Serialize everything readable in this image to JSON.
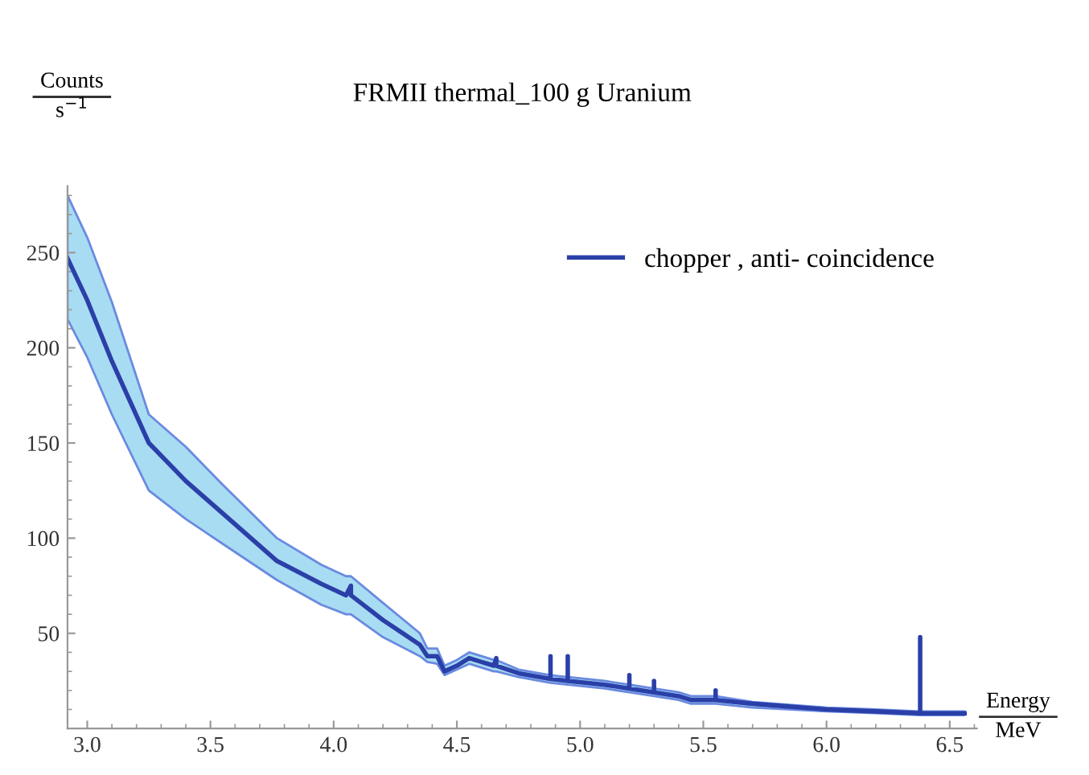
{
  "chart_data": {
    "type": "line",
    "title": "FRMII thermal_100 g Uranium",
    "xlabel": "Energy\nMeV",
    "ylabel": "Counts\ns$^{−1}$",
    "xlim": [
      2.92,
      6.61
    ],
    "ylim": [
      0,
      285
    ],
    "xticks": [
      {
        "value": 3,
        "label": "3.0"
      },
      3.5,
      {
        "value": 4,
        "label": "4.0"
      },
      4.5,
      {
        "value": 5,
        "label": "5.0"
      },
      5.5,
      {
        "value": 6,
        "label": "6.0"
      },
      6.5
    ],
    "yticks": [
      50,
      100,
      150,
      200,
      250
    ],
    "legend": "top right",
    "grid": false,
    "series": [
      {
        "name": "chopper , anti- coincidence",
        "color": "#2b3fa8",
        "x": [
          2.92,
          3.0,
          3.1,
          3.25,
          3.4,
          3.55,
          3.77,
          3.95,
          4.05,
          4.07,
          4.07,
          4.07,
          4.2,
          4.35,
          4.38,
          4.42,
          4.45,
          4.5,
          4.55,
          4.6,
          4.65,
          4.66,
          4.66,
          4.66,
          4.75,
          4.88,
          4.88,
          4.88,
          4.95,
          4.95,
          4.95,
          5.1,
          5.2,
          5.2,
          5.2,
          5.3,
          5.3,
          5.3,
          5.4,
          5.45,
          5.55,
          5.55,
          5.55,
          5.7,
          6.0,
          6.2,
          6.38,
          6.38,
          6.38,
          6.56
        ],
        "values": [
          247,
          225,
          193,
          150,
          130,
          113,
          88,
          76,
          70,
          75,
          70,
          70,
          57,
          44,
          38,
          38,
          30,
          33,
          37,
          35,
          33,
          37,
          33,
          33,
          29,
          26,
          38,
          26,
          25,
          38,
          25,
          23,
          21,
          28,
          21,
          19,
          25,
          19,
          17,
          15,
          15,
          20,
          15,
          13,
          10,
          9,
          8,
          48,
          8,
          8
        ],
        "lower": [
          215,
          195,
          165,
          125,
          110,
          97,
          78,
          65,
          60,
          60,
          60,
          60,
          48,
          38,
          35,
          34,
          28,
          31,
          34,
          32,
          30,
          30,
          30,
          30,
          27,
          24,
          24,
          24,
          23,
          23,
          23,
          21,
          19,
          19,
          19,
          17,
          17,
          17,
          15,
          13,
          13,
          13,
          13,
          11,
          9,
          8,
          7,
          7,
          7,
          7
        ],
        "upper": [
          280,
          258,
          224,
          165,
          148,
          128,
          100,
          86,
          80,
          80,
          80,
          80,
          66,
          50,
          42,
          42,
          33,
          36,
          40,
          38,
          36,
          36,
          36,
          36,
          31,
          28,
          28,
          28,
          27,
          27,
          27,
          25,
          23,
          23,
          23,
          21,
          21,
          21,
          19,
          17,
          17,
          17,
          17,
          14,
          11,
          10,
          9,
          9,
          9,
          9
        ]
      }
    ]
  }
}
